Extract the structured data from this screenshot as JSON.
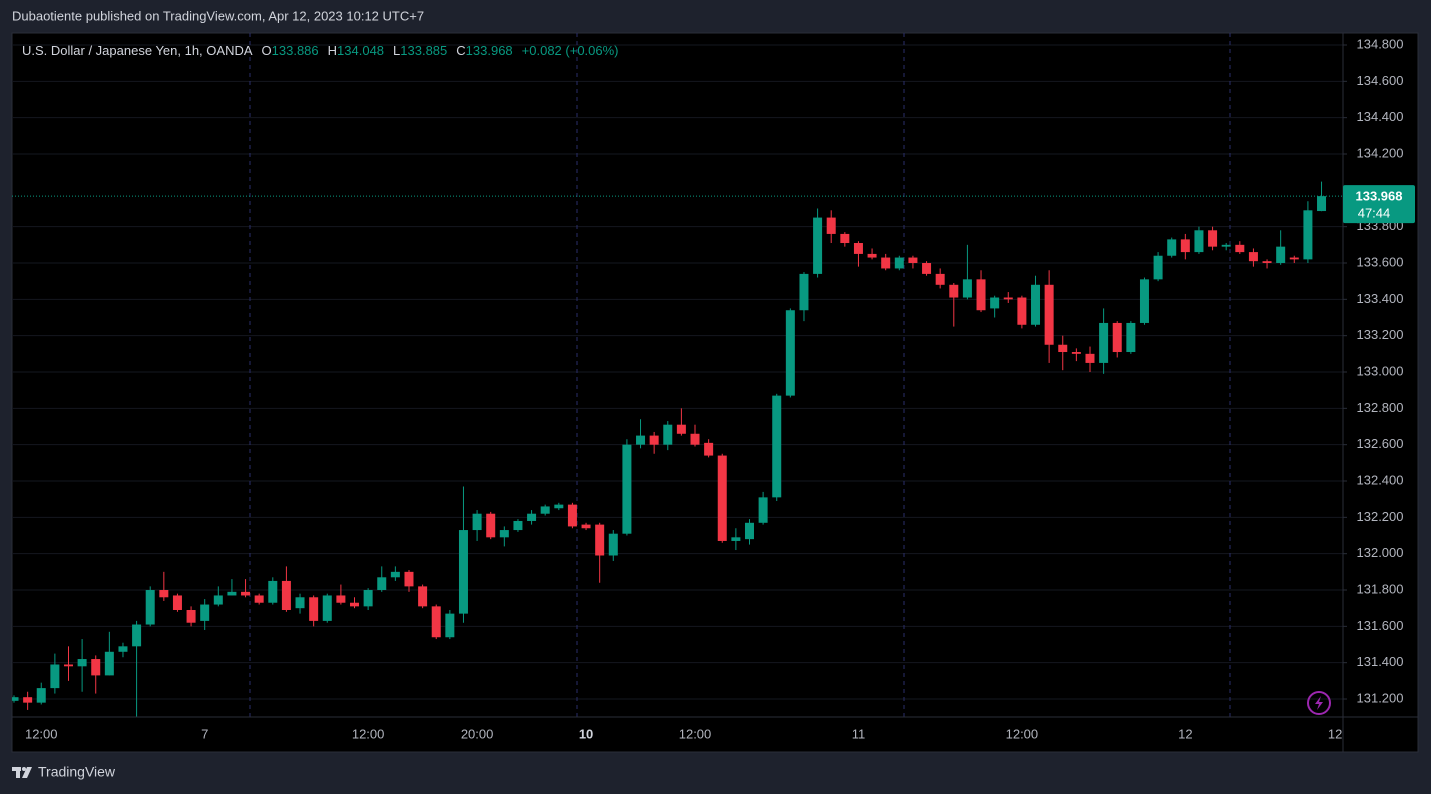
{
  "header": {
    "published": "Dubaotiente published on TradingView.com, Apr 12, 2023 10:12 UTC+7"
  },
  "footer": {
    "brand": "TradingView"
  },
  "chart_data": {
    "type": "candlestick",
    "title": "U.S. Dollar / Japanese Yen, 1h, OANDA",
    "ohlc_labels": [
      "O",
      "H",
      "L",
      "C"
    ],
    "change": "+0.082 (+0.06%)",
    "countdown": "47:44",
    "up_color": "#089981",
    "down_color": "#f23645",
    "grid": true,
    "categories": [
      null,
      null,
      "12:00",
      null,
      null,
      null,
      null,
      null,
      null,
      null,
      null,
      null,
      null,
      null,
      "7",
      null,
      null,
      null,
      null,
      null,
      null,
      null,
      null,
      null,
      null,
      null,
      "12:00",
      null,
      null,
      null,
      null,
      null,
      null,
      null,
      "20:00",
      null,
      null,
      null,
      null,
      null,
      null,
      null,
      "10",
      null,
      null,
      null,
      null,
      null,
      null,
      null,
      "12:00",
      null,
      null,
      null,
      null,
      null,
      null,
      null,
      null,
      null,
      null,
      null,
      "11",
      null,
      null,
      null,
      null,
      null,
      null,
      null,
      null,
      null,
      null,
      null,
      "12:00",
      null,
      null,
      null,
      null,
      null,
      null,
      null,
      null,
      null,
      null,
      null,
      "12",
      null,
      null,
      null,
      null,
      null,
      null,
      null,
      null,
      null,
      null,
      "12"
    ],
    "open": [
      131.19,
      131.21,
      131.18,
      131.26,
      131.39,
      131.38,
      131.42,
      131.33,
      131.46,
      131.49,
      131.61,
      131.8,
      131.77,
      131.69,
      131.63,
      131.72,
      131.77,
      131.79,
      131.77,
      131.73,
      131.85,
      131.7,
      131.76,
      131.63,
      131.77,
      131.73,
      131.71,
      131.8,
      131.87,
      131.9,
      131.82,
      131.71,
      131.54,
      131.67,
      132.13,
      132.22,
      132.09,
      132.13,
      132.18,
      132.22,
      132.25,
      132.27,
      132.16,
      132.16,
      131.99,
      132.11,
      132.6,
      132.65,
      132.6,
      132.71,
      132.66,
      132.61,
      132.54,
      132.07,
      132.08,
      132.17,
      132.31,
      132.87,
      133.34,
      133.54,
      133.85,
      133.76,
      133.71,
      133.65,
      133.63,
      133.57,
      133.63,
      133.6,
      133.54,
      133.48,
      133.41,
      133.51,
      133.35,
      133.41,
      133.41,
      133.26,
      133.48,
      133.15,
      133.11,
      133.1,
      133.05,
      133.27,
      133.11,
      133.27,
      133.51,
      133.64,
      133.73,
      133.66,
      133.78,
      133.69,
      133.7,
      133.66,
      133.61,
      133.6,
      133.63,
      133.62,
      133.886,
      null
    ],
    "high": [
      131.22,
      131.24,
      131.29,
      131.45,
      131.49,
      131.53,
      131.44,
      131.57,
      131.51,
      131.63,
      131.82,
      131.9,
      131.78,
      131.71,
      131.75,
      131.82,
      131.86,
      131.86,
      131.78,
      131.87,
      131.93,
      131.78,
      131.77,
      131.78,
      131.83,
      131.76,
      131.81,
      131.93,
      131.93,
      131.91,
      131.83,
      131.72,
      131.69,
      132.37,
      132.24,
      132.23,
      132.15,
      132.19,
      132.24,
      132.27,
      132.28,
      132.28,
      132.17,
      132.17,
      132.13,
      132.63,
      132.74,
      132.67,
      132.73,
      132.8,
      132.71,
      132.63,
      132.55,
      132.14,
      132.19,
      132.34,
      132.88,
      133.35,
      133.55,
      133.9,
      133.89,
      133.77,
      133.72,
      133.68,
      133.65,
      133.64,
      133.64,
      133.61,
      133.57,
      133.49,
      133.7,
      133.56,
      133.42,
      133.44,
      133.42,
      133.53,
      133.56,
      133.2,
      133.13,
      133.14,
      133.35,
      133.28,
      133.28,
      133.52,
      133.66,
      133.74,
      133.76,
      133.8,
      133.8,
      133.71,
      133.72,
      133.68,
      133.62,
      133.78,
      133.64,
      133.94,
      134.048,
      null
    ],
    "low": [
      131.18,
      131.14,
      131.17,
      131.23,
      131.3,
      131.24,
      131.23,
      131.33,
      131.43,
      131.1,
      131.6,
      131.74,
      131.68,
      131.6,
      131.58,
      131.71,
      131.77,
      131.76,
      131.72,
      131.72,
      131.68,
      131.67,
      131.6,
      131.62,
      131.72,
      131.7,
      131.69,
      131.79,
      131.85,
      131.79,
      131.7,
      131.53,
      131.53,
      131.62,
      132.07,
      132.08,
      132.04,
      132.12,
      132.16,
      132.21,
      132.24,
      132.14,
      132.13,
      131.84,
      131.96,
      132.1,
      132.58,
      132.55,
      132.57,
      132.65,
      132.59,
      132.53,
      132.06,
      132.02,
      132.05,
      132.16,
      132.29,
      132.86,
      133.28,
      133.52,
      133.71,
      133.69,
      133.58,
      133.62,
      133.56,
      133.56,
      133.57,
      133.53,
      133.46,
      133.25,
      133.4,
      133.33,
      133.3,
      133.38,
      133.24,
      133.25,
      133.05,
      133.01,
      133.06,
      133.0,
      132.99,
      133.08,
      133.1,
      133.26,
      133.5,
      133.63,
      133.62,
      133.65,
      133.67,
      133.67,
      133.65,
      133.58,
      133.57,
      133.59,
      133.6,
      133.6,
      133.885,
      null
    ],
    "close": [
      131.21,
      131.18,
      131.26,
      131.39,
      131.38,
      131.42,
      131.33,
      131.46,
      131.49,
      131.61,
      131.8,
      131.76,
      131.69,
      131.62,
      131.72,
      131.77,
      131.79,
      131.77,
      131.73,
      131.85,
      131.69,
      131.76,
      131.63,
      131.77,
      131.73,
      131.71,
      131.8,
      131.87,
      131.9,
      131.82,
      131.71,
      131.54,
      131.67,
      132.13,
      132.22,
      132.09,
      132.13,
      132.18,
      132.22,
      132.26,
      132.27,
      132.15,
      132.14,
      131.99,
      132.11,
      132.6,
      132.65,
      132.6,
      132.71,
      132.66,
      132.6,
      132.54,
      132.07,
      132.09,
      132.17,
      132.31,
      132.87,
      133.34,
      133.54,
      133.85,
      133.76,
      133.71,
      133.65,
      133.63,
      133.57,
      133.63,
      133.6,
      133.54,
      133.48,
      133.41,
      133.51,
      133.34,
      133.41,
      133.4,
      133.26,
      133.48,
      133.15,
      133.11,
      133.1,
      133.05,
      133.27,
      133.11,
      133.27,
      133.51,
      133.64,
      133.73,
      133.66,
      133.78,
      133.69,
      133.7,
      133.66,
      133.61,
      133.6,
      133.69,
      133.62,
      133.89,
      133.968,
      null
    ],
    "ylim": [
      131.101,
      134.866
    ],
    "yticks": [
      {
        "value": 131.2,
        "label": "131.200"
      },
      {
        "value": 131.4,
        "label": "131.400"
      },
      {
        "value": 131.6,
        "label": "131.600"
      },
      {
        "value": 131.8,
        "label": "131.800"
      },
      {
        "value": 132.0,
        "label": "132.000"
      },
      {
        "value": 132.2,
        "label": "132.200"
      },
      {
        "value": 132.4,
        "label": "132.400"
      },
      {
        "value": 132.6,
        "label": "132.600"
      },
      {
        "value": 132.8,
        "label": "132.800"
      },
      {
        "value": 133.0,
        "label": "133.000"
      },
      {
        "value": 133.2,
        "label": "133.200"
      },
      {
        "value": 133.4,
        "label": "133.400"
      },
      {
        "value": 133.6,
        "label": "133.600"
      },
      {
        "value": 133.8,
        "label": "133.800"
      },
      {
        "value": 134.2,
        "label": "134.200"
      },
      {
        "value": 134.4,
        "label": "134.400"
      },
      {
        "value": 134.6,
        "label": "134.600"
      },
      {
        "value": 134.8,
        "label": "134.800"
      }
    ]
  }
}
